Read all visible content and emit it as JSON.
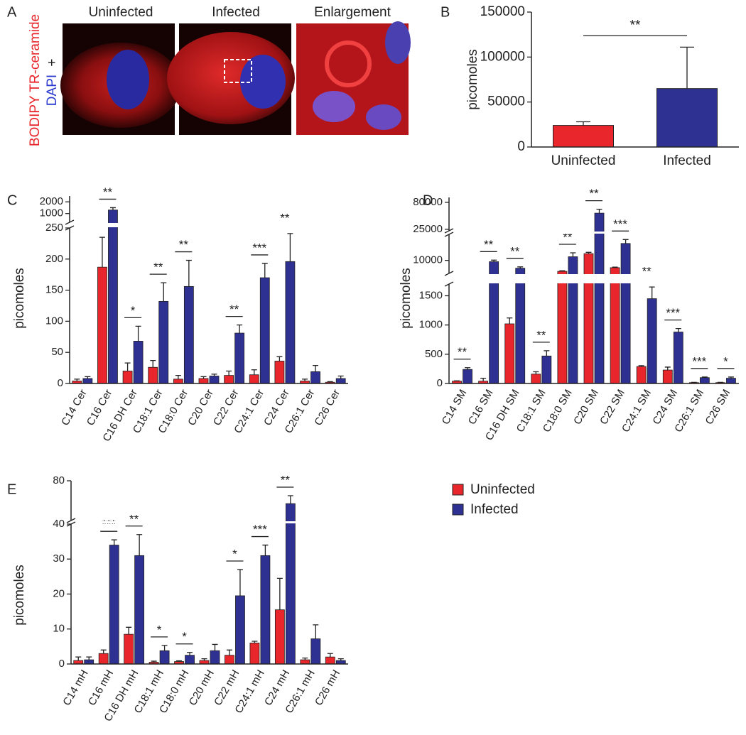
{
  "panel_a": {
    "panel": "A",
    "images": [
      "Uninfected",
      "Infected",
      "Enlargement"
    ],
    "stain": "BODIPY TR-ceramide",
    "plus": "+",
    "counterstain": "DAPI"
  },
  "chart_data": [
    {
      "type": "bar",
      "panel": "B",
      "y_label": "picomoles",
      "categories": [
        "Uninfected",
        "Infected"
      ],
      "values": [
        24000,
        65000
      ],
      "errors": [
        4000,
        46000
      ],
      "colors": [
        "#e8262b",
        "#2e3192"
      ],
      "y_segments": [
        {
          "ylim": [
            0,
            150000
          ],
          "yticks": [
            0,
            50000,
            100000,
            150000
          ]
        }
      ],
      "significance": "**"
    },
    {
      "type": "grouped_bar",
      "panel": "C",
      "y_label": "picomoles",
      "categories": [
        "C14 Cer",
        "C16 Cer",
        "C16 DH Cer",
        "C18:1 Cer",
        "C18:0 Cer",
        "C20 Cer",
        "C22 Cer",
        "C24:1 Cer",
        "C24 Cer",
        "C26:1 Cer",
        "C26 Cer"
      ],
      "series": [
        {
          "color": "#e8262b",
          "values": [
            4,
            187,
            20,
            26,
            7,
            8,
            13,
            14,
            36,
            4,
            2
          ],
          "errors": [
            3,
            48,
            13,
            11,
            6,
            3,
            7,
            8,
            7,
            3,
            1
          ]
        },
        {
          "color": "#2e3192",
          "values": [
            8,
            1300,
            68,
            132,
            156,
            12,
            81,
            170,
            196,
            19,
            8
          ],
          "errors": [
            3,
            200,
            24,
            30,
            42,
            3,
            13,
            23,
            45,
            10,
            4
          ]
        }
      ],
      "y_segments": [
        {
          "ylim": [
            0,
            250
          ],
          "yticks": [
            0,
            50,
            100,
            150,
            200,
            250
          ]
        },
        {
          "ylim": [
            250,
            2500
          ],
          "yticks": [
            1000,
            2000
          ]
        }
      ],
      "significance": [
        null,
        "**",
        "*",
        "**",
        "**",
        null,
        "**",
        "***",
        "**",
        null,
        null
      ]
    },
    {
      "type": "grouped_bar",
      "panel": "D",
      "y_label": "picomoles",
      "categories": [
        "C14 SM",
        "C16 SM",
        "C16 DH SM",
        "C18:1 SM",
        "C18:0 SM",
        "C20 SM",
        "C22 SM",
        "C24:1 SM",
        "C24 SM",
        "C26:1 SM",
        "C26 SM"
      ],
      "series": [
        {
          "color": "#e8262b",
          "values": [
            40,
            40,
            1020,
            160,
            5800,
            12600,
            7200,
            290,
            230,
            15,
            15
          ],
          "errors": [
            5,
            50,
            100,
            40,
            200,
            500,
            200,
            15,
            50,
            5,
            5
          ]
        },
        {
          "color": "#2e3192",
          "values": [
            240,
            9500,
            7000,
            470,
            11400,
            58000,
            16500,
            1450,
            880,
            100,
            90
          ],
          "errors": [
            30,
            600,
            500,
            90,
            1500,
            8000,
            1500,
            200,
            60,
            10,
            20
          ]
        }
      ],
      "y_segments": [
        {
          "ylim": [
            0,
            1700
          ],
          "yticks": [
            0,
            500,
            1000,
            1500
          ]
        },
        {
          "ylim": [
            5000,
            20000
          ],
          "yticks": [
            10000
          ]
        },
        {
          "ylim": [
            22000,
            90000
          ],
          "yticks": [
            25000,
            80000
          ]
        }
      ],
      "significance": [
        "**",
        "**",
        "**",
        "**",
        "**",
        "**",
        "***",
        "**",
        "***",
        "***",
        "*"
      ]
    },
    {
      "type": "grouped_bar",
      "panel": "E",
      "y_label": "picomoles",
      "categories": [
        "C14 mH",
        "C16 mH",
        "C16 DH mH",
        "C18:1 mH",
        "C18:0 mH",
        "C20 mH",
        "C22 mH",
        "C24:1 mH",
        "C24 mH",
        "C26:1 mH",
        "C26 mH"
      ],
      "series": [
        {
          "name": "Uninfected",
          "color": "#e8262b",
          "values": [
            1,
            3,
            8.5,
            0.5,
            0.7,
            1,
            2.5,
            6,
            15.5,
            1.2,
            2
          ],
          "errors": [
            1,
            1,
            2,
            0.3,
            0.2,
            0.5,
            1.5,
            0.5,
            9,
            0.5,
            1
          ]
        },
        {
          "name": "Infected",
          "color": "#2e3192",
          "values": [
            1.2,
            34,
            31,
            3.8,
            2.5,
            3.8,
            19.5,
            31,
            57,
            7.2,
            1
          ],
          "errors": [
            0.8,
            1.5,
            6,
            1.5,
            0.8,
            1.8,
            7.5,
            3,
            8,
            4,
            0.5
          ]
        }
      ],
      "y_segments": [
        {
          "ylim": [
            0,
            40
          ],
          "yticks": [
            0,
            10,
            20,
            30,
            40
          ]
        },
        {
          "ylim": [
            40,
            80
          ],
          "yticks": [
            80
          ]
        }
      ],
      "significance": [
        null,
        "***",
        "**",
        "*",
        "*",
        null,
        "*",
        "***",
        "**",
        null,
        null
      ]
    }
  ]
}
